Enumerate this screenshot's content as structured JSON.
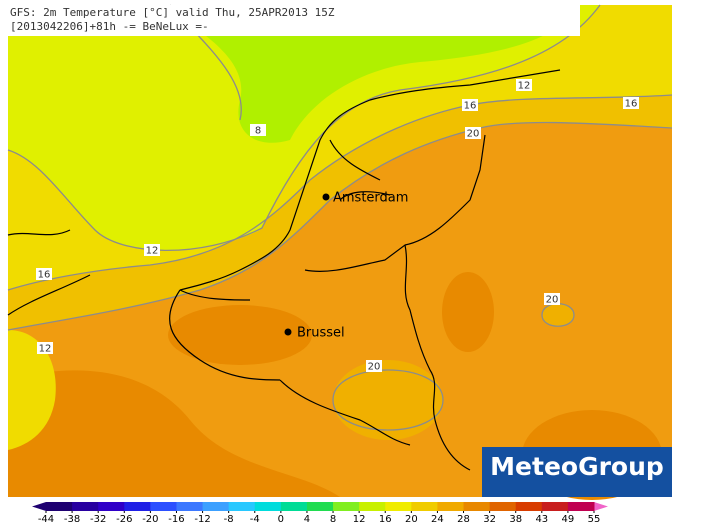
{
  "header": {
    "title": "GFS: 2m Temperature [°C] valid Thu, 25APR2013 15Z",
    "subtitle": "[2013042206]+81h -= BeNeLux =-"
  },
  "cities": [
    "Amsterdam",
    "Brussel"
  ],
  "contour_labels": [
    8,
    12,
    12,
    16,
    16,
    20,
    16,
    12,
    20,
    20
  ],
  "logo": "MeteoGroup",
  "legend": {
    "ticks": [
      -44,
      -38,
      -32,
      -26,
      -20,
      -16,
      -12,
      -8,
      -4,
      0,
      4,
      8,
      12,
      16,
      20,
      24,
      28,
      32,
      38,
      43,
      49,
      55
    ],
    "colors": [
      "#1e0070",
      "#2800a0",
      "#3000c8",
      "#2020e6",
      "#2c50ff",
      "#3c78ff",
      "#3ca0ff",
      "#28c8ff",
      "#00dcdc",
      "#00dc96",
      "#20dc50",
      "#80ee20",
      "#c8f000",
      "#f0ec00",
      "#f0cc00",
      "#f0aa00",
      "#e88800",
      "#e06400",
      "#d83c00",
      "#c81e1e",
      "#c00050"
    ]
  }
}
